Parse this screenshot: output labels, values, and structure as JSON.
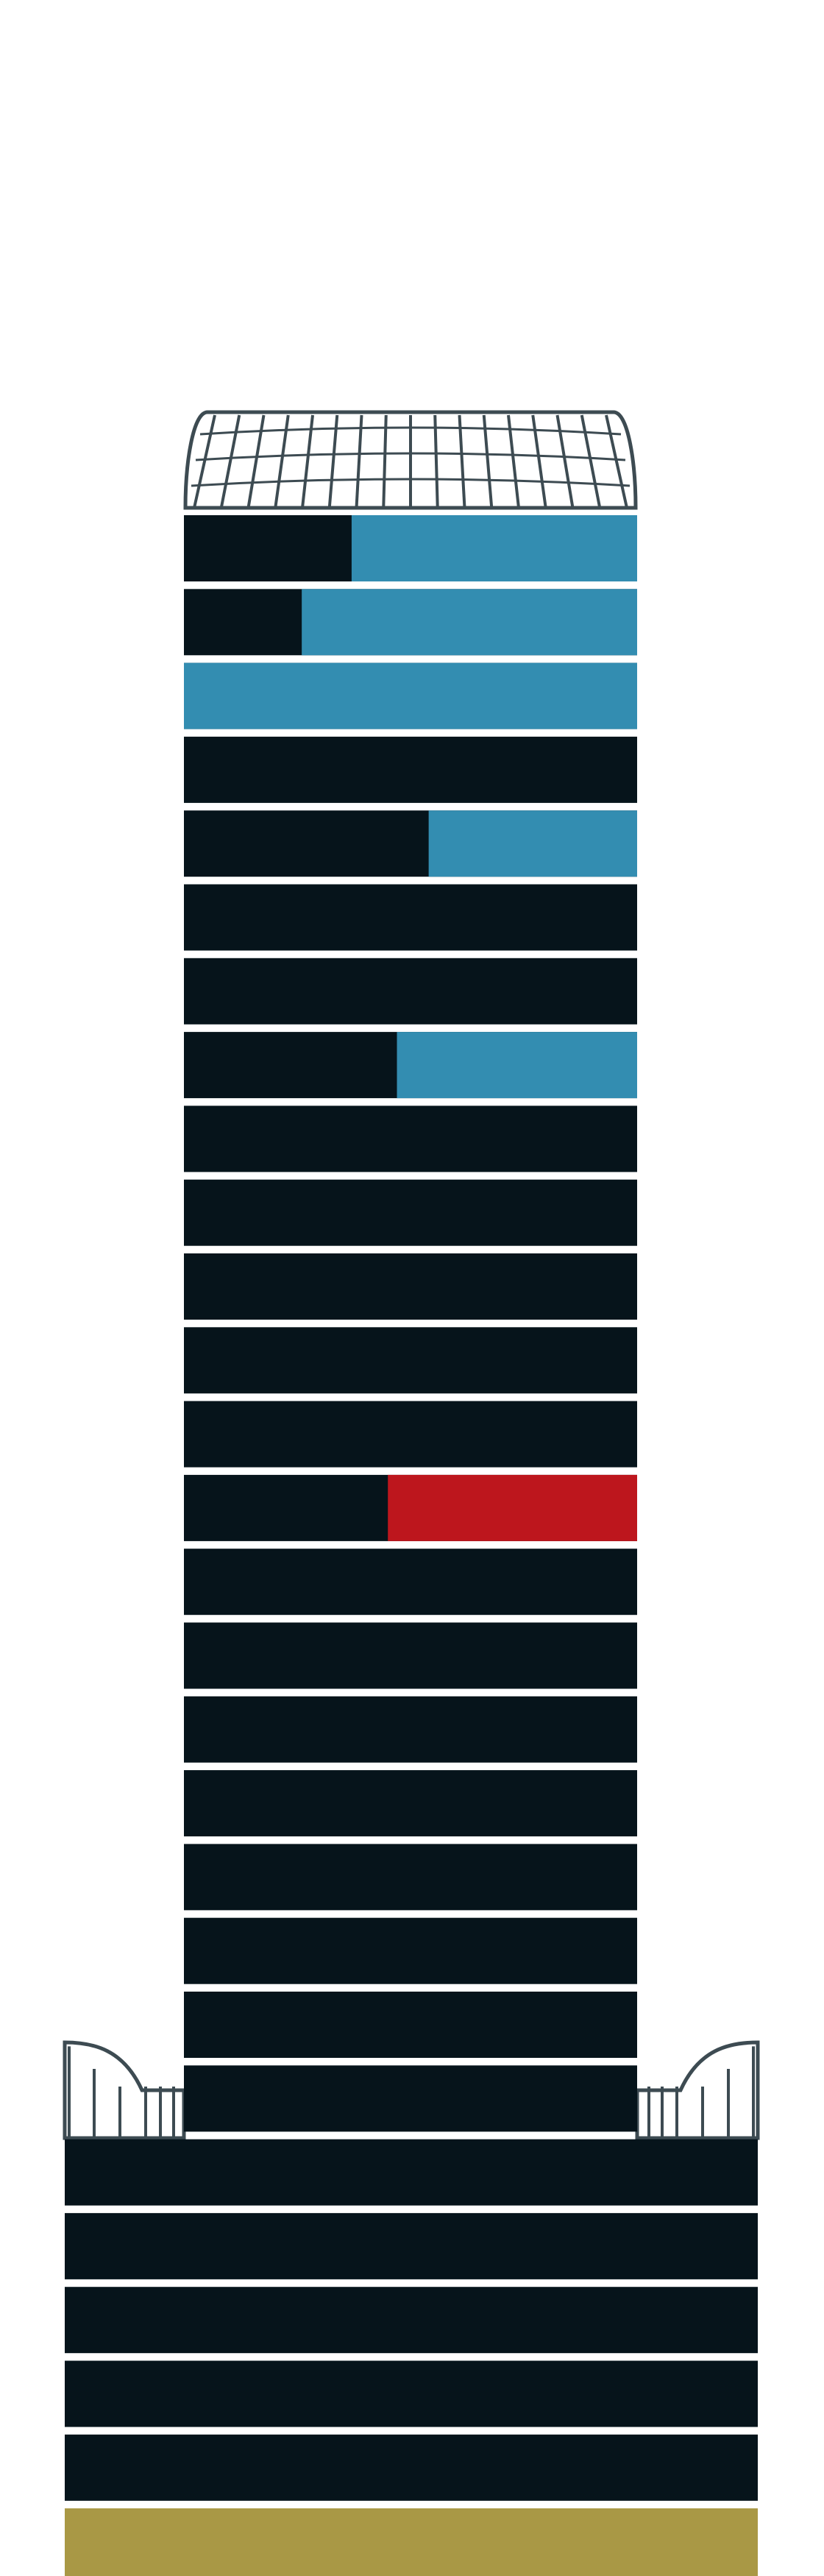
{
  "colors": {
    "background": "#ffffff",
    "floor": "#06141b",
    "highlight_blue": "#338db1",
    "highlight_red": "#bd161d",
    "ground": "#a99845",
    "outline": "#3d4b52"
  },
  "crown_icon": "glass-dome-icon",
  "podium_canopy_icons": [
    "left-canopy-icon",
    "right-canopy-icon"
  ],
  "tower_floors": [
    {
      "highlight": "blue",
      "fraction": 0.63
    },
    {
      "highlight": "blue",
      "fraction": 0.74
    },
    {
      "highlight": "blue",
      "fraction": 1.0
    },
    {
      "highlight": "none",
      "fraction": 0
    },
    {
      "highlight": "blue",
      "fraction": 0.46
    },
    {
      "highlight": "none",
      "fraction": 0
    },
    {
      "highlight": "none",
      "fraction": 0
    },
    {
      "highlight": "blue",
      "fraction": 0.53
    },
    {
      "highlight": "none",
      "fraction": 0
    },
    {
      "highlight": "none",
      "fraction": 0
    },
    {
      "highlight": "none",
      "fraction": 0
    },
    {
      "highlight": "none",
      "fraction": 0
    },
    {
      "highlight": "none",
      "fraction": 0
    },
    {
      "highlight": "red",
      "fraction": 0.55
    },
    {
      "highlight": "none",
      "fraction": 0
    },
    {
      "highlight": "none",
      "fraction": 0
    },
    {
      "highlight": "none",
      "fraction": 0
    },
    {
      "highlight": "none",
      "fraction": 0
    },
    {
      "highlight": "none",
      "fraction": 0
    },
    {
      "highlight": "none",
      "fraction": 0
    },
    {
      "highlight": "none",
      "fraction": 0
    },
    {
      "highlight": "none",
      "fraction": 0
    }
  ],
  "podium_floors": [
    {
      "highlight": "none",
      "fraction": 0
    },
    {
      "highlight": "none",
      "fraction": 0
    },
    {
      "highlight": "none",
      "fraction": 0
    },
    {
      "highlight": "none",
      "fraction": 0
    },
    {
      "highlight": "none",
      "fraction": 0
    }
  ],
  "ground_level": {
    "highlight": "gold"
  }
}
